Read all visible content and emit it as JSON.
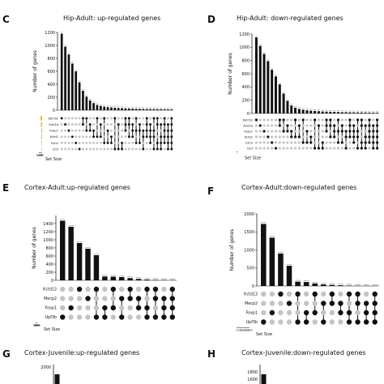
{
  "panel_letters": [
    "C",
    "D",
    "E",
    "F",
    "G",
    "H"
  ],
  "colors": {
    "bar": "#111111",
    "set_size_bar": "#f0b800",
    "dot_on": "#111111",
    "dot_off": "#c4c4c4"
  },
  "chart_data": [
    {
      "type": "bar",
      "panel": "C",
      "title": "Hip-Adult: up-regulated genes",
      "ylabel": "Number of genes",
      "ylim": [
        0,
        1200
      ],
      "yticks": [
        "0",
        "200",
        "400",
        "600",
        "800",
        "1000",
        "1200"
      ],
      "values": [
        1180,
        980,
        860,
        720,
        600,
        430,
        300,
        210,
        150,
        110,
        80,
        65,
        55,
        48,
        42,
        38,
        34,
        31,
        28,
        26,
        24,
        22,
        20,
        19,
        18,
        17,
        16,
        15,
        14,
        13,
        12,
        11
      ],
      "sets": [
        "Kdm5c",
        "Arid1b",
        "Foxp1",
        "Kctd1",
        "Ezh2",
        "Ctcf"
      ],
      "set_sizes": [
        3600,
        2800,
        2100,
        1900,
        1200,
        900
      ],
      "set_size_ticks": [
        "1500",
        "1000",
        "500",
        "0"
      ],
      "set_size_label": "Set Size",
      "matrix": [
        [
          0
        ],
        [
          1
        ],
        [
          2
        ],
        [
          3
        ],
        [
          4
        ],
        [
          5
        ],
        [
          0,
          1
        ],
        [
          0,
          2
        ],
        [
          1,
          2
        ],
        [
          2,
          3
        ],
        [
          0,
          3
        ],
        [
          1,
          3
        ],
        [
          0,
          4
        ],
        [
          2,
          4
        ],
        [
          3,
          4
        ],
        [
          0,
          5
        ],
        [
          1,
          5
        ],
        [
          4,
          5
        ],
        [
          0,
          1,
          2
        ],
        [
          0,
          1,
          3
        ],
        [
          1,
          2,
          3
        ],
        [
          0,
          2,
          4
        ],
        [
          1,
          2,
          4
        ],
        [
          2,
          3,
          5
        ],
        [
          0,
          1,
          2,
          3
        ],
        [
          1,
          2,
          3,
          4
        ],
        [
          0,
          2,
          3,
          5
        ],
        [
          0,
          1,
          4,
          5
        ],
        [
          1,
          3,
          4,
          5
        ],
        [
          0,
          1,
          2,
          3,
          4
        ],
        [
          1,
          2,
          3,
          4,
          5
        ],
        [
          0,
          1,
          2,
          3,
          4,
          5
        ]
      ]
    },
    {
      "type": "bar",
      "panel": "D",
      "title": "Hip-Adult: down-regulated genes",
      "ylabel": "Number of genes",
      "ylim": [
        0,
        1200
      ],
      "yticks": [
        "0",
        "200",
        "400",
        "600",
        "800",
        "1000",
        "1200"
      ],
      "values": [
        1150,
        1020,
        900,
        790,
        660,
        560,
        440,
        300,
        190,
        120,
        85,
        68,
        56,
        48,
        42,
        38,
        34,
        30,
        27,
        25,
        23,
        21,
        19,
        18,
        17,
        16,
        15,
        14,
        13,
        12,
        11,
        10
      ],
      "sets": [
        "Kdm5c",
        "Arid1b",
        "Foxp1",
        "Kctd1",
        "Ezh2",
        "Ctcf"
      ],
      "set_sizes": [
        3400,
        2600,
        2300,
        1800,
        1300,
        800
      ],
      "set_size_ticks": [],
      "set_size_label": "Set Size",
      "matrix": [
        [
          0
        ],
        [
          1
        ],
        [
          2
        ],
        [
          3
        ],
        [
          4
        ],
        [
          5
        ],
        [
          0,
          1
        ],
        [
          0,
          2
        ],
        [
          1,
          2
        ],
        [
          2,
          3
        ],
        [
          0,
          3
        ],
        [
          1,
          3
        ],
        [
          0,
          4
        ],
        [
          2,
          4
        ],
        [
          3,
          4
        ],
        [
          0,
          5
        ],
        [
          1,
          5
        ],
        [
          4,
          5
        ],
        [
          0,
          1,
          2
        ],
        [
          0,
          1,
          3
        ],
        [
          1,
          2,
          3
        ],
        [
          0,
          2,
          4
        ],
        [
          1,
          2,
          4
        ],
        [
          2,
          3,
          5
        ],
        [
          0,
          1,
          2,
          3
        ],
        [
          1,
          2,
          3,
          4
        ],
        [
          0,
          2,
          3,
          5
        ],
        [
          0,
          1,
          4,
          5
        ],
        [
          1,
          3,
          4,
          5
        ],
        [
          0,
          1,
          2,
          3,
          4
        ],
        [
          1,
          2,
          3,
          4,
          5
        ],
        [
          0,
          1,
          2,
          3,
          4,
          5
        ]
      ]
    },
    {
      "type": "bar",
      "panel": "E",
      "title": "Cortex-Adult:up-regulated genes",
      "ylabel": "Number of genes",
      "ylim": [
        0,
        1600
      ],
      "yticks": [
        "0",
        "200",
        "400",
        "600",
        "800",
        "1000",
        "1200",
        "1400"
      ],
      "values": [
        1470,
        1320,
        920,
        780,
        620,
        95,
        90,
        80,
        55,
        35,
        20,
        12,
        8,
        5
      ],
      "sets": [
        "Kctd13",
        "Mecp2",
        "Foxp1",
        "Upf3b"
      ],
      "set_sizes": [
        2600,
        1300,
        2500,
        2000
      ],
      "set_size_ticks": [
        "2000",
        "1500",
        "1000",
        "500",
        "0"
      ],
      "set_size_label": "Set Size",
      "matrix": [
        [
          3
        ],
        [
          2
        ],
        [
          0
        ],
        [
          1
        ],
        [
          0,
          3
        ],
        [
          2,
          3
        ],
        [
          0,
          2
        ],
        [
          1,
          3
        ],
        [
          0,
          1
        ],
        [
          1,
          2
        ],
        [
          0,
          2,
          3
        ],
        [
          0,
          1,
          3
        ],
        [
          1,
          2,
          3
        ],
        [
          0,
          1,
          2,
          3
        ]
      ]
    },
    {
      "type": "bar",
      "panel": "F",
      "title": "Cortex-Adult:down-regulated genes",
      "ylabel": "Number of genes",
      "ylim": [
        0,
        2000
      ],
      "yticks": [
        "0",
        "500",
        "1000",
        "1500",
        "2000"
      ],
      "values": [
        1720,
        1340,
        900,
        560,
        120,
        110,
        70,
        45,
        30,
        20,
        12,
        8,
        5,
        4
      ],
      "sets": [
        "Kctd13",
        "Mecp2",
        "Foxp1",
        "Upf3b"
      ],
      "set_sizes": [
        2200,
        1200,
        2400,
        2700
      ],
      "set_size_ticks": [
        "2000",
        "1500",
        "1000",
        "500",
        "0"
      ],
      "set_size_label": "Set Size",
      "matrix": [
        [
          3
        ],
        [
          2
        ],
        [
          0
        ],
        [
          1
        ],
        [
          0,
          3
        ],
        [
          2,
          3
        ],
        [
          0,
          2
        ],
        [
          1,
          3
        ],
        [
          0,
          1
        ],
        [
          1,
          2
        ],
        [
          0,
          2,
          3
        ],
        [
          0,
          1,
          3
        ],
        [
          1,
          2,
          3
        ],
        [
          0,
          1,
          2,
          3
        ]
      ]
    },
    {
      "type": "bar",
      "panel": "G",
      "title": "Cortex-Juvenile:up-regulated genes",
      "yticks": [
        "2000"
      ]
    },
    {
      "type": "bar",
      "panel": "H",
      "title": "Cortex-Juvenile:down-regulated genes",
      "yticks": [
        "1800",
        "1600"
      ]
    }
  ]
}
